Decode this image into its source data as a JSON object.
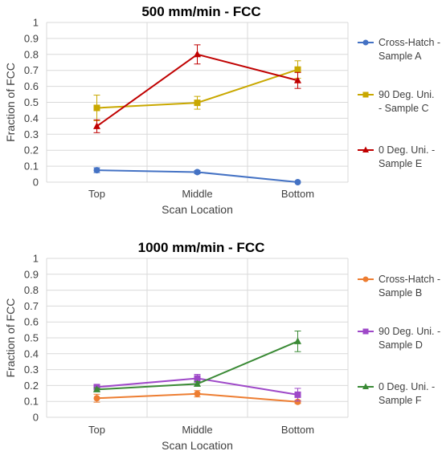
{
  "chart_data": [
    {
      "type": "line",
      "title": "500 mm/min - FCC",
      "xlabel": "Scan Location",
      "ylabel": "Fraction of FCC",
      "categories": [
        "Top",
        "Middle",
        "Bottom"
      ],
      "yticks": [
        "0",
        "0.1",
        "0.2",
        "0.3",
        "0.4",
        "0.5",
        "0.6",
        "0.7",
        "0.8",
        "0.9",
        "1"
      ],
      "ylim": [
        0,
        1
      ],
      "grid": true,
      "legend": "right",
      "series": [
        {
          "name_lines": [
            "Cross-Hatch -",
            "Sample A"
          ],
          "color": "#4472c4",
          "marker": "circle",
          "values": [
            0.075,
            0.063,
            0.0
          ],
          "errors": [
            0.015,
            0.01,
            0.0
          ]
        },
        {
          "name_lines": [
            "90 Deg. Uni.",
            "- Sample C"
          ],
          "color": "#c9a800",
          "marker": "square",
          "values": [
            0.465,
            0.497,
            0.705
          ],
          "errors": [
            0.08,
            0.04,
            0.055
          ]
        },
        {
          "name_lines": [
            "0 Deg. Uni. -",
            "Sample E"
          ],
          "color": "#c00000",
          "marker": "triangle",
          "values": [
            0.35,
            0.8,
            0.637
          ],
          "errors": [
            0.04,
            0.06,
            0.05
          ]
        }
      ]
    },
    {
      "type": "line",
      "title": "1000 mm/min - FCC",
      "xlabel": "Scan Location",
      "ylabel": "Fraction of FCC",
      "categories": [
        "Top",
        "Middle",
        "Bottom"
      ],
      "yticks": [
        "0",
        "0.1",
        "0.2",
        "0.3",
        "0.4",
        "0.5",
        "0.6",
        "0.7",
        "0.8",
        "0.9",
        "1"
      ],
      "ylim": [
        0,
        1
      ],
      "grid": true,
      "legend": "right",
      "series": [
        {
          "name_lines": [
            "Cross-Hatch -",
            "Sample B"
          ],
          "color": "#ed7d31",
          "marker": "circle",
          "values": [
            0.12,
            0.148,
            0.097
          ],
          "errors": [
            0.025,
            0.02,
            0.01
          ]
        },
        {
          "name_lines": [
            "90 Deg. Uni. -",
            "Sample D"
          ],
          "color": "#9e48c8",
          "marker": "square",
          "values": [
            0.19,
            0.245,
            0.142
          ],
          "errors": [
            0.015,
            0.025,
            0.04
          ]
        },
        {
          "name_lines": [
            "0 Deg. Uni. -",
            "Sample F"
          ],
          "color": "#3a8a35",
          "marker": "triangle",
          "values": [
            0.175,
            0.21,
            0.478
          ],
          "errors": [
            0.01,
            0.015,
            0.065
          ]
        }
      ]
    }
  ]
}
